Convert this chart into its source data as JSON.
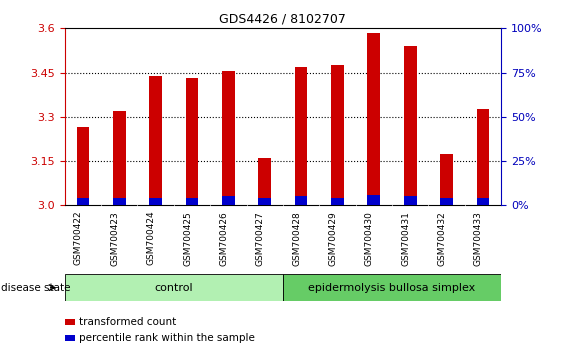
{
  "title": "GDS4426 / 8102707",
  "categories": [
    "GSM700422",
    "GSM700423",
    "GSM700424",
    "GSM700425",
    "GSM700426",
    "GSM700427",
    "GSM700428",
    "GSM700429",
    "GSM700430",
    "GSM700431",
    "GSM700432",
    "GSM700433"
  ],
  "red_values": [
    3.265,
    3.32,
    3.44,
    3.43,
    3.455,
    3.16,
    3.47,
    3.475,
    3.585,
    3.54,
    3.175,
    3.325
  ],
  "blue_values": [
    0.025,
    0.025,
    0.025,
    0.025,
    0.03,
    0.025,
    0.03,
    0.025,
    0.035,
    0.03,
    0.025,
    0.025
  ],
  "bar_base": 3.0,
  "ylim": [
    3.0,
    3.6
  ],
  "yticks_left": [
    3.0,
    3.15,
    3.3,
    3.45,
    3.6
  ],
  "yticks_right_vals": [
    0,
    25,
    50,
    75,
    100
  ],
  "bar_width": 0.35,
  "red_color": "#cc0000",
  "blue_color": "#0000cc",
  "left_tick_color": "#cc0000",
  "right_tick_color": "#0000bb",
  "control_count": 6,
  "disease_label": "disease state",
  "group1_label": "control",
  "group2_label": "epidermolysis bullosa simplex",
  "group1_color": "#b2f0b2",
  "group2_color": "#66cc66",
  "legend1": "transformed count",
  "legend2": "percentile rank within the sample",
  "plot_bg_color": "#ffffff"
}
